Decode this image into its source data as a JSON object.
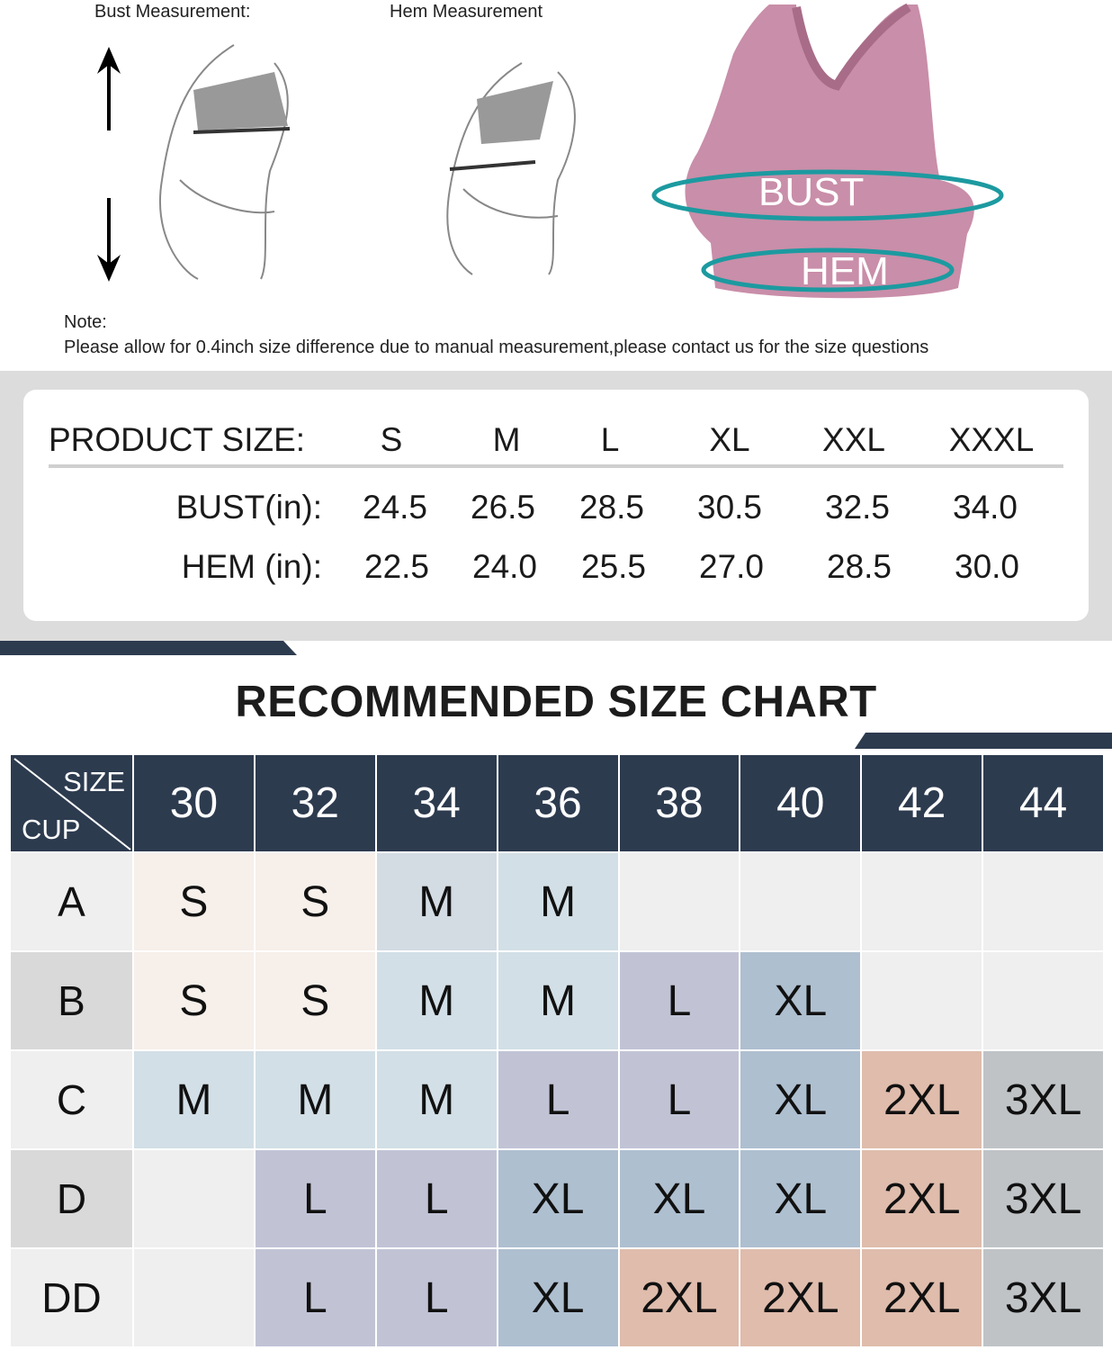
{
  "illustrations": {
    "bust_label": "Bust Measurement:",
    "hem_label": "Hem Measurement",
    "product_bust": "BUST",
    "product_hem": "HEM"
  },
  "note": {
    "heading": "Note:",
    "text": "Please allow for 0.4inch size difference due to manual measurement,please contact us for the size questions"
  },
  "product_size": {
    "header": "PRODUCT SIZE:",
    "sizes": [
      "S",
      "M",
      "L",
      "XL",
      "XXL",
      "XXXL"
    ],
    "rows": [
      {
        "label": "BUST(in):",
        "values": [
          "24.5",
          "26.5",
          "28.5",
          "30.5",
          "32.5",
          "34.0"
        ]
      },
      {
        "label": "HEM (in):",
        "values": [
          "22.5",
          "24.0",
          "25.5",
          "27.0",
          "28.5",
          "30.0"
        ]
      }
    ]
  },
  "size_chart": {
    "title": "RECOMMENDED SIZE CHART",
    "corner_top": "SIZE",
    "corner_bottom": "CUP",
    "band_sizes": [
      "30",
      "32",
      "34",
      "36",
      "38",
      "40",
      "42",
      "44"
    ],
    "rows": [
      {
        "cup": "A",
        "cells": [
          "S",
          "S",
          "M",
          "M",
          "",
          "",
          "",
          ""
        ]
      },
      {
        "cup": "B",
        "cells": [
          "S",
          "S",
          "M",
          "M",
          "L",
          "XL",
          "",
          ""
        ]
      },
      {
        "cup": "C",
        "cells": [
          "M",
          "M",
          "M",
          "L",
          "L",
          "XL",
          "2XL",
          "3XL"
        ]
      },
      {
        "cup": "D",
        "cells": [
          "",
          "L",
          "L",
          "XL",
          "XL",
          "XL",
          "2XL",
          "3XL"
        ]
      },
      {
        "cup": "DD",
        "cells": [
          "",
          "L",
          "L",
          "XL",
          "2XL",
          "2XL",
          "2XL",
          "3XL"
        ]
      }
    ],
    "colors": {
      "header": "#2d3b4f",
      "S": "#f6efea",
      "M": "#d2dfe6",
      "L": "#c1c3d5",
      "XL": "#aebfd0",
      "2XL": "#dfbcac",
      "3XL": "#bfc3c6",
      "empty": "#efefef"
    }
  }
}
